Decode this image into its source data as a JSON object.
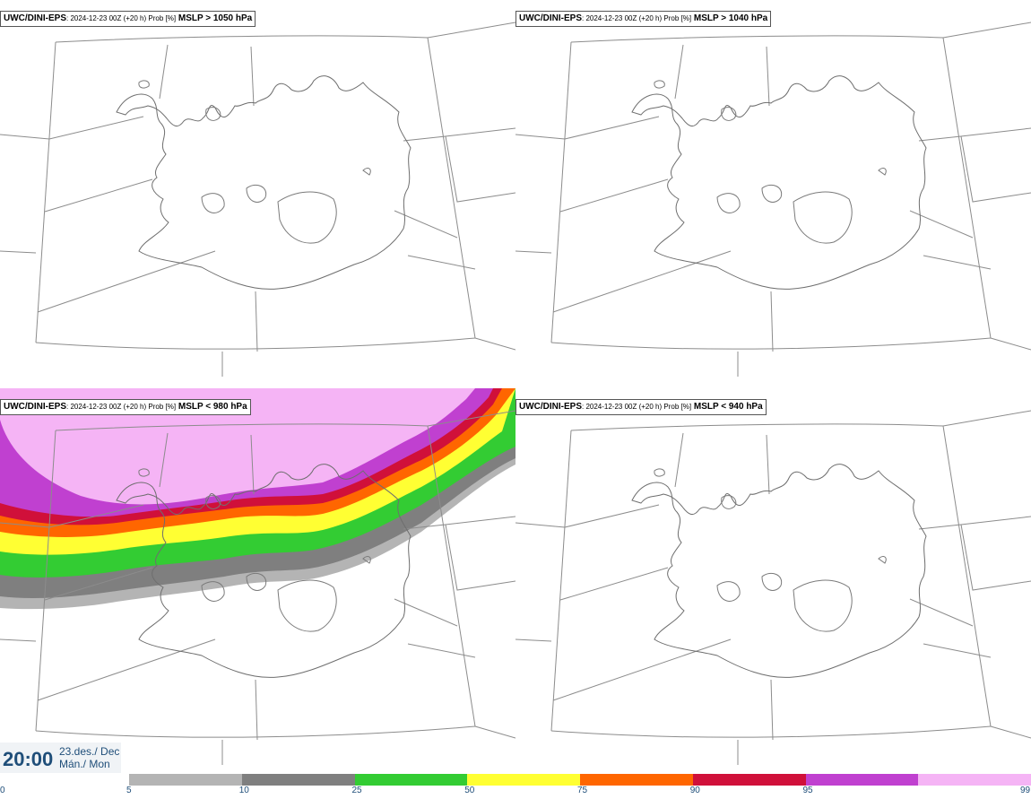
{
  "panels": [
    {
      "model": "UWC/DINI-EPS",
      "meta": ": 2024-12-23 00Z (+20 h) Prob [%]",
      "field": "MSLP > 1050 hPa"
    },
    {
      "model": "UWC/DINI-EPS",
      "meta": ": 2024-12-23 00Z (+20 h) Prob [%]",
      "field": "MSLP > 1040 hPa"
    },
    {
      "model": "UWC/DINI-EPS",
      "meta": ": 2024-12-23 00Z (+20 h) Prob [%]",
      "field": "MSLP < 980 hPa"
    },
    {
      "model": "UWC/DINI-EPS",
      "meta": ": 2024-12-23 00Z (+20 h) Prob [%]",
      "field": "MSLP < 940 hPa"
    }
  ],
  "time": {
    "clock": "20:00",
    "date_line1": "23.des./ Dec",
    "date_line2": "Mán./ Mon"
  },
  "colorbar": {
    "ticks": [
      "0",
      "5",
      "10",
      "25",
      "50",
      "75",
      "90",
      "95",
      "99"
    ],
    "colors": [
      "#b4b4b4",
      "#7f7f7f",
      "#33cc33",
      "#ffff33",
      "#ff6600",
      "#d0103a",
      "#c040d0",
      "#f5b4f5"
    ]
  }
}
